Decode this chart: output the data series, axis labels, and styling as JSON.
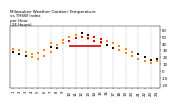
{
  "title": "Milwaukee Weather Outdoor Temperature\nvs THSW Index\nper Hour\n(24 Hours)",
  "title_fontsize": 3.0,
  "background_color": "#ffffff",
  "xlim": [
    0.5,
    24.5
  ],
  "ylim": [
    -25,
    65
  ],
  "yticks": [
    -20,
    -10,
    0,
    10,
    20,
    30,
    40,
    50,
    60
  ],
  "ytick_labels": [
    "-20",
    "-10",
    "0",
    "10",
    "20",
    "30",
    "40",
    "50",
    "60"
  ],
  "xticks": [
    1,
    2,
    3,
    4,
    5,
    6,
    7,
    8,
    9,
    10,
    11,
    12,
    13,
    14,
    15,
    16,
    17,
    18,
    19,
    20,
    21,
    22,
    23,
    24
  ],
  "grid_color": "#bbbbbb",
  "temp_color": "#ff8800",
  "thsw_color": "#dd0000",
  "black_color": "#111111",
  "temp_data_x": [
    1,
    1,
    2,
    2,
    3,
    3,
    4,
    4,
    5,
    5,
    6,
    6,
    7,
    7,
    7,
    8,
    8,
    9,
    9,
    10,
    10,
    11,
    11,
    12,
    12,
    13,
    13,
    14,
    14,
    15,
    15,
    16,
    16,
    17,
    17,
    18,
    18,
    19,
    19,
    20,
    20,
    21,
    21,
    22,
    22,
    23,
    23,
    24,
    24
  ],
  "temp_data_y": [
    32,
    28,
    30,
    25,
    27,
    22,
    24,
    20,
    26,
    18,
    30,
    22,
    40,
    35,
    28,
    38,
    33,
    45,
    40,
    50,
    44,
    52,
    48,
    55,
    50,
    52,
    46,
    50,
    44,
    46,
    40,
    44,
    38,
    40,
    34,
    36,
    30,
    32,
    26,
    28,
    22,
    24,
    18,
    20,
    15,
    16,
    12,
    18,
    14
  ],
  "thsw_data_x": [
    10,
    11,
    12,
    12,
    13,
    13,
    14,
    14,
    15,
    15,
    16
  ],
  "thsw_data_y": [
    44,
    48,
    50,
    55,
    52,
    48,
    50,
    44,
    46,
    42,
    38
  ],
  "thsw_line_x": [
    10,
    15
  ],
  "thsw_line_y": [
    36,
    36
  ],
  "black_data_x": [
    1,
    2,
    3,
    7,
    8,
    12,
    13,
    16,
    17,
    21,
    22,
    23,
    24
  ],
  "black_data_y": [
    28,
    25,
    22,
    35,
    33,
    55,
    52,
    38,
    34,
    24,
    20,
    16,
    18
  ],
  "marker_size": 2.5,
  "tick_fontsize": 2.8,
  "ytick_fontsize": 2.8,
  "line_width": 1.2,
  "grid_vlines": [
    3,
    5,
    7,
    9,
    11,
    13,
    15,
    17,
    19,
    21,
    23
  ]
}
